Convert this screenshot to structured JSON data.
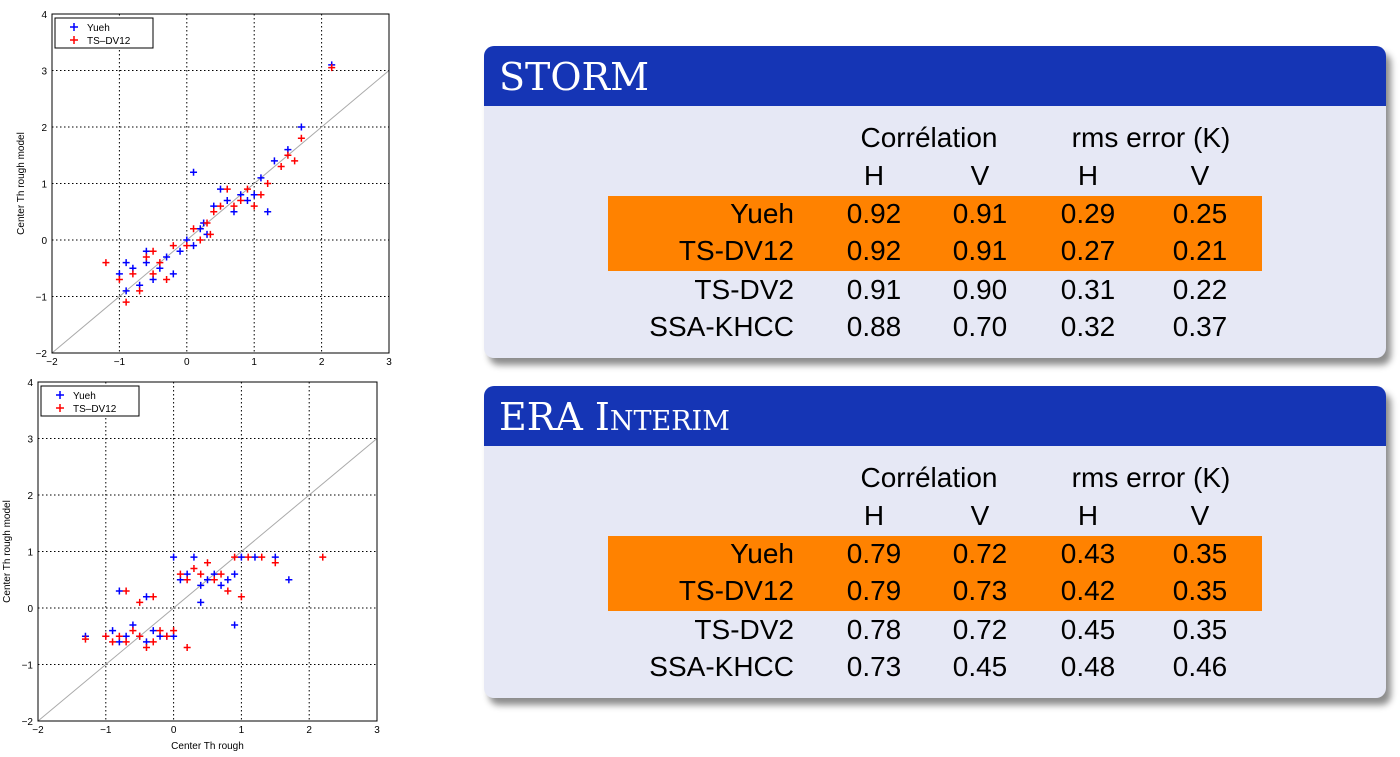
{
  "chart_data": [
    {
      "type": "scatter",
      "xlim": [
        -2,
        3
      ],
      "ylim": [
        -2,
        4
      ],
      "x_ticks": [
        -2,
        -1,
        0,
        1,
        2,
        3
      ],
      "y_ticks": [
        -2,
        -1,
        0,
        1,
        2,
        3,
        4
      ],
      "ylabel": "Center Th rough model",
      "xlabel": "",
      "grid": "dotted",
      "diagonal": true,
      "legend_position": "top-left",
      "series": [
        {
          "name": "Yueh",
          "color": "#0000ff",
          "points": [
            [
              -1.0,
              -0.6
            ],
            [
              -0.9,
              -0.9
            ],
            [
              -0.8,
              -0.5
            ],
            [
              -0.7,
              -0.8
            ],
            [
              -0.6,
              -0.4
            ],
            [
              -0.5,
              -0.7
            ],
            [
              -0.4,
              -0.5
            ],
            [
              -0.3,
              -0.3
            ],
            [
              -0.2,
              -0.6
            ],
            [
              -0.1,
              -0.2
            ],
            [
              0.0,
              0.0
            ],
            [
              0.1,
              -0.1
            ],
            [
              0.2,
              0.2
            ],
            [
              0.3,
              0.1
            ],
            [
              0.4,
              0.6
            ],
            [
              0.5,
              0.9
            ],
            [
              0.6,
              0.7
            ],
            [
              0.7,
              0.5
            ],
            [
              0.8,
              0.8
            ],
            [
              0.9,
              0.7
            ],
            [
              1.0,
              0.8
            ],
            [
              1.1,
              1.1
            ],
            [
              1.2,
              0.5
            ],
            [
              1.3,
              1.4
            ],
            [
              1.5,
              1.6
            ],
            [
              1.7,
              2.0
            ],
            [
              0.1,
              1.2
            ],
            [
              2.15,
              3.1
            ],
            [
              -0.9,
              -0.4
            ],
            [
              -0.6,
              -0.2
            ],
            [
              0.25,
              0.3
            ]
          ]
        },
        {
          "name": "TS–DV12",
          "color": "#ff0000",
          "points": [
            [
              -1.2,
              -0.4
            ],
            [
              -1.0,
              -0.7
            ],
            [
              -0.9,
              -1.1
            ],
            [
              -0.8,
              -0.6
            ],
            [
              -0.7,
              -0.9
            ],
            [
              -0.6,
              -0.3
            ],
            [
              -0.5,
              -0.6
            ],
            [
              -0.4,
              -0.4
            ],
            [
              -0.3,
              -0.7
            ],
            [
              -0.2,
              -0.1
            ],
            [
              0.0,
              -0.1
            ],
            [
              0.1,
              0.2
            ],
            [
              0.2,
              0.0
            ],
            [
              0.3,
              0.3
            ],
            [
              0.4,
              0.5
            ],
            [
              0.5,
              0.6
            ],
            [
              0.6,
              0.9
            ],
            [
              0.7,
              0.6
            ],
            [
              0.8,
              0.7
            ],
            [
              0.9,
              0.9
            ],
            [
              1.0,
              0.6
            ],
            [
              1.1,
              0.8
            ],
            [
              1.2,
              1.0
            ],
            [
              1.4,
              1.3
            ],
            [
              1.5,
              1.5
            ],
            [
              1.6,
              1.4
            ],
            [
              1.7,
              1.8
            ],
            [
              2.15,
              3.05
            ],
            [
              -0.5,
              -0.2
            ],
            [
              0.35,
              0.1
            ]
          ]
        }
      ]
    },
    {
      "type": "scatter",
      "xlim": [
        -2,
        3
      ],
      "ylim": [
        -2,
        4
      ],
      "x_ticks": [
        -2,
        -1,
        0,
        1,
        2,
        3
      ],
      "y_ticks": [
        -2,
        -1,
        0,
        1,
        2,
        3,
        4
      ],
      "ylabel": "Center Th rough model",
      "xlabel": "Center Th rough",
      "grid": "dotted",
      "diagonal": true,
      "legend_position": "top-left",
      "series": [
        {
          "name": "Yueh",
          "color": "#0000ff",
          "points": [
            [
              -1.3,
              -0.5
            ],
            [
              -1.0,
              -0.5
            ],
            [
              -0.9,
              -0.4
            ],
            [
              -0.8,
              -0.6
            ],
            [
              -0.7,
              -0.5
            ],
            [
              -0.6,
              -0.3
            ],
            [
              -0.5,
              -0.5
            ],
            [
              -0.4,
              -0.6
            ],
            [
              -0.3,
              -0.4
            ],
            [
              -0.2,
              -0.5
            ],
            [
              -0.1,
              -0.5
            ],
            [
              0.0,
              -0.5
            ],
            [
              -0.8,
              0.3
            ],
            [
              -0.4,
              0.2
            ],
            [
              0.0,
              0.9
            ],
            [
              0.1,
              0.5
            ],
            [
              0.2,
              0.6
            ],
            [
              0.3,
              0.9
            ],
            [
              0.4,
              0.4
            ],
            [
              0.5,
              0.5
            ],
            [
              0.6,
              0.6
            ],
            [
              0.7,
              0.4
            ],
            [
              0.8,
              0.5
            ],
            [
              0.9,
              0.6
            ],
            [
              1.0,
              0.9
            ],
            [
              1.2,
              0.9
            ],
            [
              1.5,
              0.9
            ],
            [
              1.7,
              0.5
            ],
            [
              0.9,
              -0.3
            ],
            [
              0.4,
              0.1
            ]
          ]
        },
        {
          "name": "TS–DV12",
          "color": "#ff0000",
          "points": [
            [
              -1.3,
              -0.55
            ],
            [
              -1.0,
              -0.5
            ],
            [
              -0.9,
              -0.6
            ],
            [
              -0.8,
              -0.5
            ],
            [
              -0.7,
              -0.6
            ],
            [
              -0.6,
              -0.4
            ],
            [
              -0.5,
              -0.5
            ],
            [
              -0.4,
              -0.7
            ],
            [
              -0.3,
              -0.6
            ],
            [
              -0.2,
              -0.4
            ],
            [
              -0.1,
              -0.5
            ],
            [
              0.0,
              -0.4
            ],
            [
              -0.7,
              0.3
            ],
            [
              -0.3,
              0.2
            ],
            [
              0.1,
              0.6
            ],
            [
              0.2,
              0.5
            ],
            [
              0.3,
              0.7
            ],
            [
              0.4,
              0.6
            ],
            [
              0.5,
              0.8
            ],
            [
              0.6,
              0.5
            ],
            [
              0.7,
              0.6
            ],
            [
              0.8,
              0.3
            ],
            [
              0.9,
              0.9
            ],
            [
              1.1,
              0.9
            ],
            [
              1.3,
              0.9
            ],
            [
              1.5,
              0.8
            ],
            [
              2.2,
              0.9
            ],
            [
              0.2,
              -0.7
            ],
            [
              1.0,
              0.2
            ],
            [
              -0.5,
              0.1
            ]
          ]
        }
      ]
    },
    {
      "type": "table",
      "title": "STORM",
      "group_headers": [
        "Corrélation",
        "rms error (K)"
      ],
      "sub_headers": [
        "H",
        "V",
        "H",
        "V"
      ],
      "rows": [
        {
          "label": "Yueh",
          "values": [
            "0.92",
            "0.91",
            "0.29",
            "0.25"
          ],
          "highlight": true
        },
        {
          "label": "TS-DV12",
          "values": [
            "0.92",
            "0.91",
            "0.27",
            "0.21"
          ],
          "highlight": true
        },
        {
          "label": "TS-DV2",
          "values": [
            "0.91",
            "0.90",
            "0.31",
            "0.22"
          ],
          "highlight": false
        },
        {
          "label": "SSA-KHCC",
          "values": [
            "0.88",
            "0.70",
            "0.32",
            "0.37"
          ],
          "highlight": false
        }
      ]
    },
    {
      "type": "table",
      "title": "ERA Interim",
      "group_headers": [
        "Corrélation",
        "rms error (K)"
      ],
      "sub_headers": [
        "H",
        "V",
        "H",
        "V"
      ],
      "rows": [
        {
          "label": "Yueh",
          "values": [
            "0.79",
            "0.72",
            "0.43",
            "0.35"
          ],
          "highlight": true
        },
        {
          "label": "TS-DV12",
          "values": [
            "0.79",
            "0.73",
            "0.42",
            "0.35"
          ],
          "highlight": true
        },
        {
          "label": "TS-DV2",
          "values": [
            "0.78",
            "0.72",
            "0.45",
            "0.35"
          ],
          "highlight": false
        },
        {
          "label": "SSA-KHCC",
          "values": [
            "0.73",
            "0.45",
            "0.48",
            "0.46"
          ],
          "highlight": false
        }
      ]
    }
  ],
  "colors": {
    "block_title_bg": "#1535b5",
    "block_body_bg": "#e6e8f5",
    "highlight": "#ff8200",
    "series_1": "#0000ff",
    "series_2": "#ff0000"
  }
}
